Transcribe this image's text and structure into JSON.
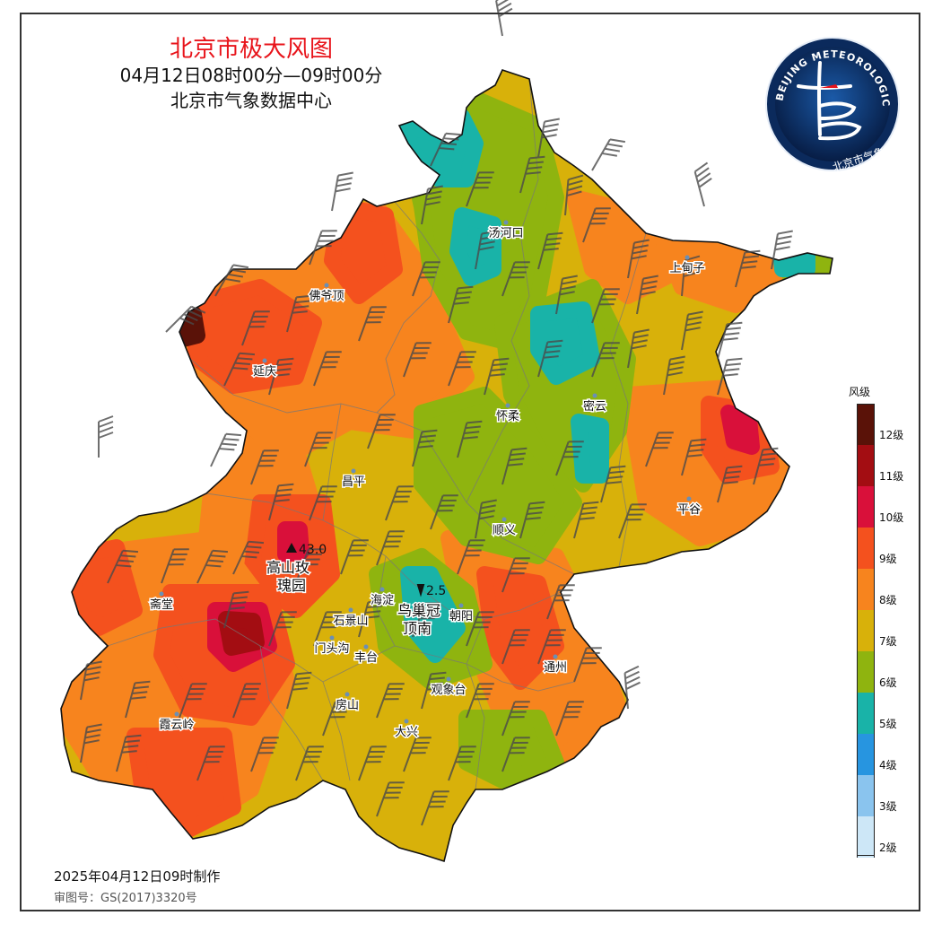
{
  "title": {
    "main": "北京市极大风图",
    "time_range": "04月12日08时00分—09时00分",
    "source": "北京市气象数据中心"
  },
  "footer": {
    "made": "2025年04月12日09时制作",
    "approval": "审图号：GS(2017)3320号"
  },
  "logo": {
    "arc_text": "BEIJING METEOROLOGICAL SERVICE",
    "agency": "北京市气象局",
    "colors": {
      "outer": "#0b2a5c",
      "inner": "#0e3f86",
      "mark": "#ffffff",
      "accent": "#e8141b"
    }
  },
  "legend": {
    "title": "风级",
    "levels": [
      {
        "label": "12级",
        "color": "#5a1208"
      },
      {
        "label": "11级",
        "color": "#a30d12"
      },
      {
        "label": "10级",
        "color": "#d9103a"
      },
      {
        "label": "9级",
        "color": "#f4511e"
      },
      {
        "label": "8级",
        "color": "#f7841e"
      },
      {
        "label": "7级",
        "color": "#d8b10a"
      },
      {
        "label": "6级",
        "color": "#8fb40f"
      },
      {
        "label": "5级",
        "color": "#19b3a8"
      },
      {
        "label": "4级",
        "color": "#2795e0"
      },
      {
        "label": "3级",
        "color": "#8ac4ee"
      },
      {
        "label": "2级",
        "color": "#cde7f7"
      }
    ]
  },
  "stations": [
    "汤河口",
    "上甸子",
    "佛爷顶",
    "延庆",
    "怀柔",
    "密云",
    "昌平",
    "平谷",
    "顺义",
    "海淀",
    "朝阳",
    "斋堂",
    "石景山",
    "门头沟",
    "丰台",
    "通州",
    "观象台",
    "房山",
    "霞云岭",
    "大兴"
  ],
  "extremes": {
    "max": {
      "value": "43.0",
      "station": "高山玫瑰园",
      "line1": "高山玫",
      "line2": "瑰园"
    },
    "min": {
      "value": "2.5",
      "station": "鸟巢冠顶南",
      "line1": "鸟巢冠",
      "line2": "顶南"
    }
  }
}
